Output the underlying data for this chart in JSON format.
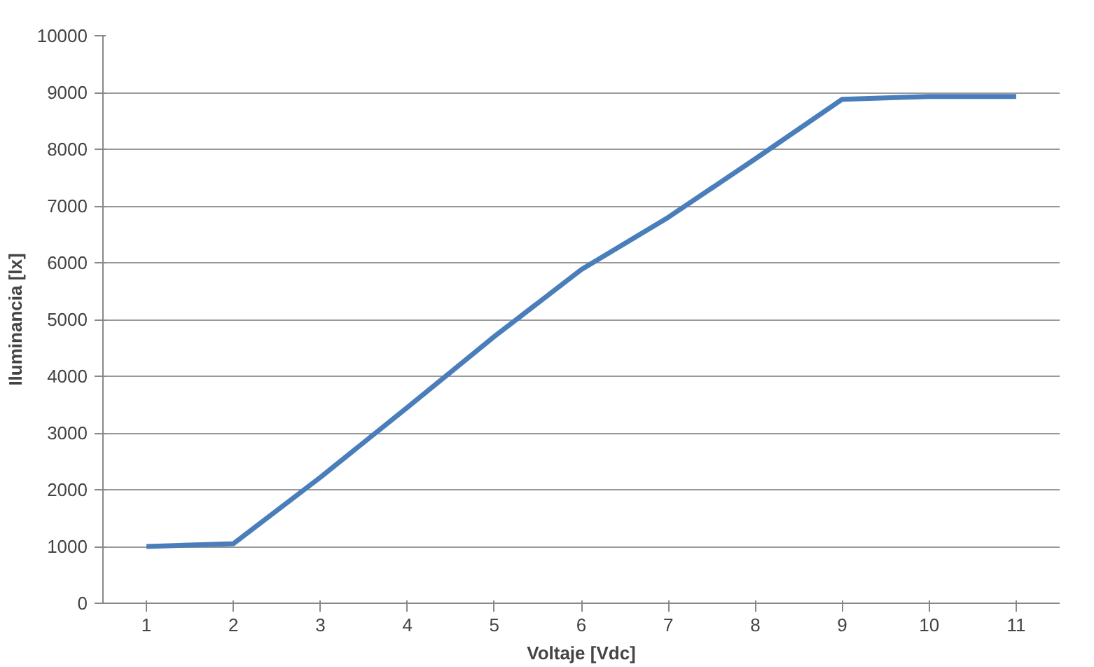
{
  "chart_data": {
    "type": "line",
    "xlabel": "Voltaje [Vdc]",
    "ylabel": "Iluminancia [lx]",
    "categories": [
      "1",
      "2",
      "3",
      "4",
      "5",
      "6",
      "7",
      "8",
      "9",
      "10",
      "11"
    ],
    "series": [
      {
        "color": "#4a7ebb",
        "values": [
          1000,
          1050,
          2220,
          3450,
          4700,
          5880,
          6800,
          7830,
          8880,
          8930,
          8930
        ]
      }
    ],
    "ylim": [
      0,
      10000
    ],
    "yticks": [
      0,
      1000,
      2000,
      3000,
      4000,
      5000,
      6000,
      7000,
      8000,
      9000,
      10000
    ],
    "grid": "y",
    "marker": "none",
    "line_style": "solid"
  }
}
